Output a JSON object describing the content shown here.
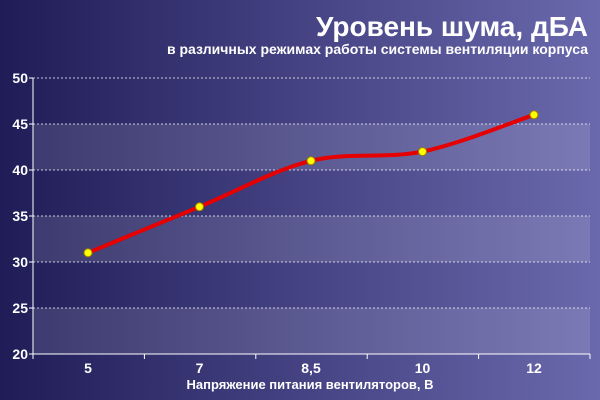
{
  "chart_data": {
    "type": "line",
    "title": "Уровень шума, дБА",
    "subtitle": "в различных режимах работы системы вентиляции корпуса",
    "xlabel": "Напряжение питания вентиляторов, В",
    "ylabel": "",
    "categories": [
      "5",
      "7",
      "8,5",
      "10",
      "12"
    ],
    "series": [
      {
        "values": [
          31,
          36,
          41,
          42,
          46
        ]
      }
    ],
    "ylim": [
      20,
      50
    ],
    "yticks": [
      20,
      25,
      30,
      35,
      40,
      45,
      50
    ],
    "grid": true,
    "legend": "none",
    "colors": {
      "background_left": "#1f1c57",
      "background_right": "#6a69ad",
      "band": "#ffffff",
      "line": "#e60000",
      "marker_fill": "#ffff00",
      "marker_stroke": "#a08000"
    }
  }
}
